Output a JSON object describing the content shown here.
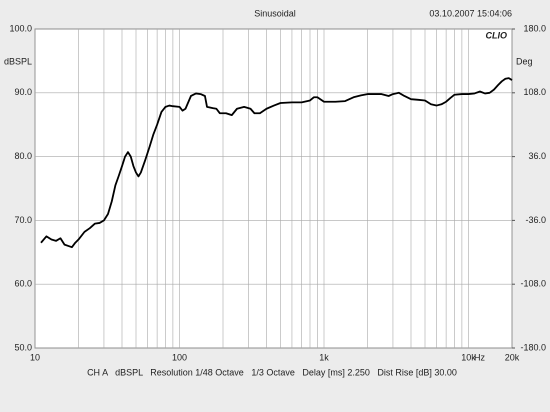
{
  "chart_data": {
    "type": "line",
    "title": "Sinusoidal",
    "timestamp": "03.10.2007 15:04:06",
    "brand": "CLIO",
    "y_label": "dBSPL",
    "y2_label": "Deg",
    "x_unit": "Hz",
    "caption": "CH A   dBSPL   Resolution 1/48 Octave   1/3 Octave   Delay [ms] 2.250   Dist Rise [dB] 30.00",
    "x_log": true,
    "grid": true,
    "xlim": [
      10,
      20000
    ],
    "xticks": [
      10,
      100,
      {
        "value": 1000,
        "label": "1k"
      },
      {
        "value": 10000,
        "label": "10k"
      },
      {
        "value": 20000,
        "label": "20k"
      }
    ],
    "x_minor_ticks": [
      20,
      30,
      40,
      50,
      60,
      70,
      80,
      90,
      200,
      300,
      400,
      500,
      600,
      700,
      800,
      900,
      2000,
      3000,
      4000,
      5000,
      6000,
      7000,
      8000,
      9000
    ],
    "ylim": [
      50,
      100
    ],
    "yticks": [
      {
        "value": 50,
        "label": "50.0"
      },
      {
        "value": 60,
        "label": "60.0"
      },
      {
        "value": 70,
        "label": "70.0"
      },
      {
        "value": 80,
        "label": "80.0"
      },
      {
        "value": 90,
        "label": "90.0"
      },
      {
        "value": 100,
        "label": "100.0"
      }
    ],
    "y2lim": [
      -180,
      180
    ],
    "y2ticks": [
      {
        "value": -180,
        "label": "-180.0"
      },
      {
        "value": -108,
        "label": "-108.0"
      },
      {
        "value": -36,
        "label": "-36.0"
      },
      {
        "value": 36,
        "label": "36.0"
      },
      {
        "value": 108,
        "label": "108.0"
      },
      {
        "value": 180,
        "label": "180.0"
      }
    ],
    "x": [
      11,
      12,
      13,
      14,
      15,
      16,
      17,
      18,
      19,
      20,
      22,
      24,
      26,
      28,
      30,
      32,
      34,
      36,
      38,
      40,
      42,
      44,
      46,
      48,
      50,
      52,
      54,
      58,
      62,
      66,
      70,
      75,
      80,
      85,
      90,
      100,
      105,
      110,
      120,
      130,
      140,
      150,
      155,
      170,
      180,
      190,
      210,
      230,
      250,
      280,
      310,
      330,
      360,
      400,
      450,
      500,
      600,
      700,
      800,
      850,
      900,
      1000,
      1200,
      1400,
      1600,
      1800,
      2000,
      2500,
      2800,
      3000,
      3300,
      3600,
      4000,
      4500,
      5000,
      5500,
      6000,
      6500,
      7000,
      7500,
      8000,
      9000,
      10000,
      11000,
      12000,
      13000,
      14000,
      15000,
      16000,
      17000,
      18000,
      19000,
      20000
    ],
    "series": [
      {
        "name": "dBSPL",
        "color": "#000000",
        "values": [
          66.5,
          67.5,
          67.0,
          66.8,
          67.2,
          66.2,
          66.0,
          65.8,
          66.5,
          67.0,
          68.2,
          68.8,
          69.5,
          69.6,
          70.0,
          71.0,
          73.0,
          75.5,
          77.0,
          78.5,
          80.0,
          80.7,
          80.0,
          78.5,
          77.5,
          76.9,
          77.5,
          79.5,
          81.5,
          83.5,
          85.0,
          87.0,
          87.8,
          88.0,
          87.9,
          87.8,
          87.2,
          87.5,
          89.5,
          89.9,
          89.8,
          89.5,
          87.8,
          87.6,
          87.5,
          86.8,
          86.8,
          86.5,
          87.5,
          87.8,
          87.5,
          86.8,
          86.8,
          87.5,
          88.0,
          88.4,
          88.5,
          88.5,
          88.8,
          89.3,
          89.3,
          88.6,
          88.6,
          88.7,
          89.3,
          89.6,
          89.8,
          89.8,
          89.5,
          89.8,
          90.0,
          89.5,
          89.0,
          88.9,
          88.8,
          88.2,
          88.0,
          88.2,
          88.6,
          89.2,
          89.7,
          89.8,
          89.8,
          89.9,
          90.2,
          89.9,
          90.0,
          90.5,
          91.2,
          91.8,
          92.2,
          92.3,
          92.0
        ]
      }
    ]
  }
}
